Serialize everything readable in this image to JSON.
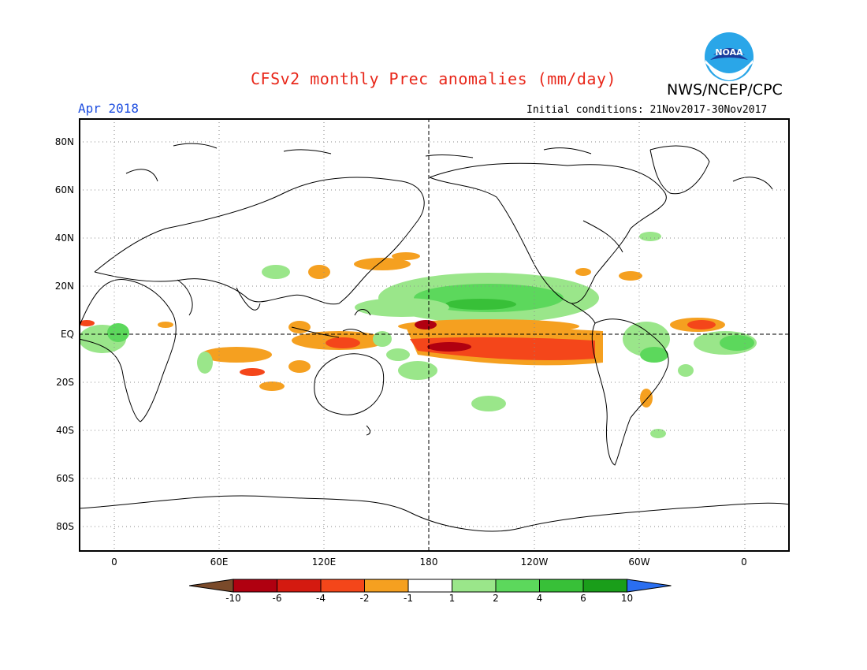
{
  "header": {
    "title": "CFSv2 monthly Prec anomalies (mm/day)",
    "org": "NWS/NCEP/CPC",
    "period": "Apr 2018",
    "initial_conditions": "Initial conditions: 21Nov2017-30Nov2017",
    "logo_text": "NOAA"
  },
  "axes": {
    "lat_labels": [
      "80N",
      "60N",
      "40N",
      "20N",
      "EQ",
      "20S",
      "40S",
      "60S",
      "80S"
    ],
    "lon_labels": [
      "0",
      "60E",
      "120E",
      "180",
      "120W",
      "60W",
      "0"
    ]
  },
  "colorbar": {
    "labels": [
      "-10",
      "-6",
      "-4",
      "-2",
      "-1",
      "1",
      "2",
      "4",
      "6",
      "10"
    ],
    "colors": [
      "#7a4a2a",
      "#b00010",
      "#d41a10",
      "#f4461a",
      "#f5a020",
      "#ffffff",
      "#9ae68a",
      "#5cd85c",
      "#38c038",
      "#1a9e1a",
      "#2a6ef0"
    ]
  },
  "chart_data": {
    "type": "heatmap",
    "title": "CFSv2 monthly Prec anomalies (mm/day)",
    "variable": "Precipitation anomaly",
    "units": "mm/day",
    "lat_range": [
      -90,
      90
    ],
    "lon_range": [
      -20,
      380
    ],
    "levels": [
      -10,
      -6,
      -4,
      -2,
      -1,
      1,
      2,
      4,
      6,
      10
    ]
  }
}
